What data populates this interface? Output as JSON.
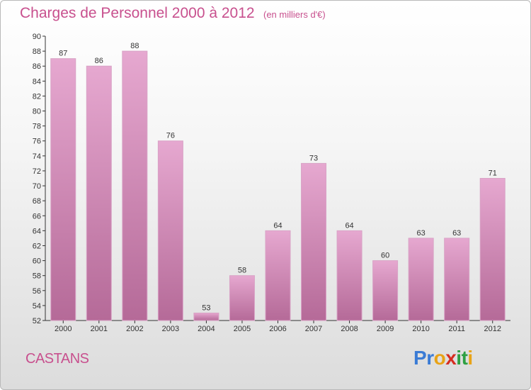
{
  "title": "Charges de Personnel 2000 à 2012",
  "subtitle": "(en milliers d'€)",
  "commune": "CASTANS",
  "logo": {
    "letters": [
      "P",
      "r",
      "o",
      "x",
      "i",
      "t",
      "i"
    ],
    "colors": [
      "#3a7bd5",
      "#3a7bd5",
      "#e8a317",
      "#d62d20",
      "#2ea043",
      "#2ea043",
      "#e8a317"
    ]
  },
  "colors": {
    "accent": "#c8508e",
    "bar_top": "#e6a8d0",
    "bar_bottom": "#b56a98"
  },
  "chart_data": {
    "type": "bar",
    "categories": [
      "2000",
      "2001",
      "2002",
      "2003",
      "2004",
      "2005",
      "2006",
      "2007",
      "2008",
      "2009",
      "2010",
      "2011",
      "2012"
    ],
    "values": [
      87,
      86,
      88,
      76,
      53,
      58,
      64,
      73,
      64,
      60,
      63,
      63,
      71
    ],
    "ylim": [
      52,
      90
    ],
    "yticks": [
      52,
      54,
      56,
      58,
      60,
      62,
      64,
      66,
      68,
      70,
      72,
      74,
      76,
      78,
      80,
      82,
      84,
      86,
      88,
      90
    ],
    "grid": false,
    "title": "Charges de Personnel 2000 à 2012",
    "subtitle": "(en milliers d'€)"
  }
}
